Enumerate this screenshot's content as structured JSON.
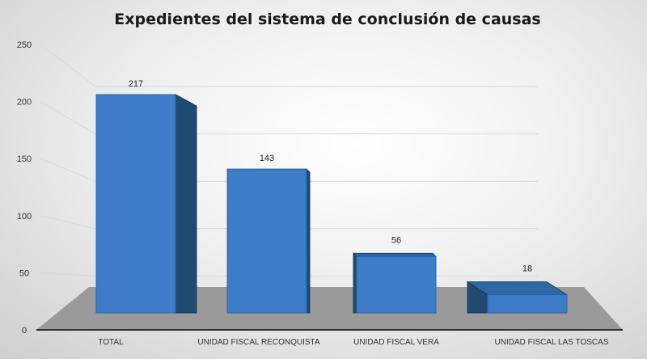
{
  "chart_data": {
    "type": "bar",
    "title": "Expedientes del sistema de conclusión de causas",
    "categories": [
      "TOTAL",
      "UNIDAD FISCAL RECONQUISTA",
      "UNIDAD FISCAL VERA",
      "UNIDAD FISCAL LAS TOSCAS"
    ],
    "values": [
      217,
      143,
      56,
      18
    ],
    "data_labels": [
      "217",
      "143",
      "56",
      "18"
    ],
    "yticks": [
      "0",
      "50",
      "100",
      "150",
      "200",
      "250"
    ],
    "ylim": [
      0,
      250
    ],
    "xlabel": "",
    "ylabel": "",
    "grid": true,
    "bar_color": "#3f7cc8",
    "bar_side_color": "#1f4a72",
    "three_d": true
  }
}
